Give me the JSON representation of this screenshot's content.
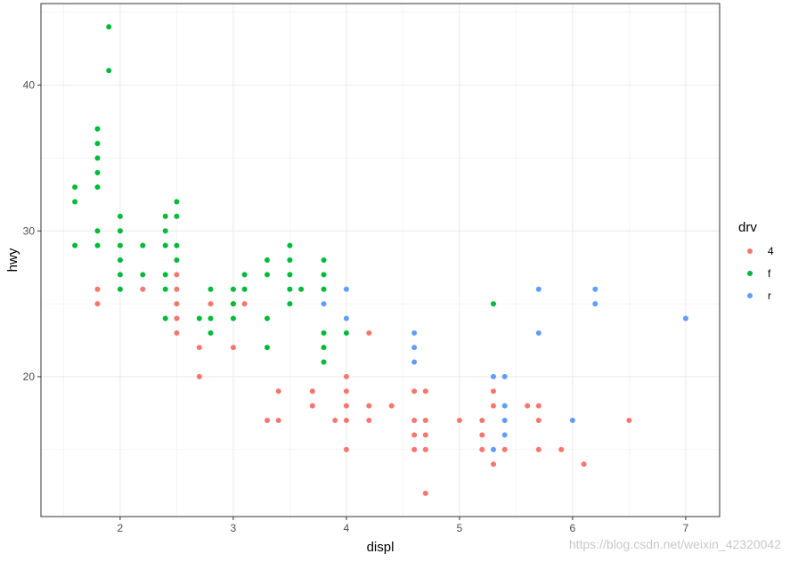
{
  "chart_data": {
    "type": "scatter",
    "title": "",
    "xlabel": "displ",
    "ylabel": "hwy",
    "xlim": [
      1.3,
      7.3
    ],
    "ylim": [
      10.4,
      45.6
    ],
    "x_ticks": [
      2,
      3,
      4,
      5,
      6,
      7
    ],
    "y_ticks": [
      20,
      30,
      40
    ],
    "grid": true,
    "legend": {
      "title": "drv",
      "placement": "right",
      "entries": [
        "4",
        "f",
        "r"
      ]
    },
    "colors": {
      "4": "#F8766D",
      "f": "#00BA38",
      "r": "#619CFF"
    },
    "series": [
      {
        "name": "4",
        "points": [
          [
            1.8,
            26
          ],
          [
            1.8,
            25
          ],
          [
            2.2,
            26
          ],
          [
            2.5,
            27
          ],
          [
            2.5,
            26
          ],
          [
            2.5,
            25
          ],
          [
            2.5,
            24
          ],
          [
            2.5,
            23
          ],
          [
            2.7,
            22
          ],
          [
            2.7,
            20
          ],
          [
            2.8,
            25
          ],
          [
            3.0,
            22
          ],
          [
            3.0,
            25
          ],
          [
            3.1,
            25
          ],
          [
            3.3,
            17
          ],
          [
            3.4,
            19
          ],
          [
            3.4,
            17
          ],
          [
            3.7,
            19
          ],
          [
            3.7,
            18
          ],
          [
            3.9,
            17
          ],
          [
            4.0,
            20
          ],
          [
            4.0,
            19
          ],
          [
            4.0,
            18
          ],
          [
            4.0,
            17
          ],
          [
            4.0,
            15
          ],
          [
            4.2,
            23
          ],
          [
            4.2,
            18
          ],
          [
            4.2,
            17
          ],
          [
            4.4,
            18
          ],
          [
            4.6,
            19
          ],
          [
            4.6,
            17
          ],
          [
            4.6,
            16
          ],
          [
            4.6,
            15
          ],
          [
            4.7,
            19
          ],
          [
            4.7,
            17
          ],
          [
            4.7,
            16
          ],
          [
            4.7,
            15
          ],
          [
            4.7,
            12
          ],
          [
            5.0,
            17
          ],
          [
            5.2,
            17
          ],
          [
            5.2,
            16
          ],
          [
            5.2,
            15
          ],
          [
            5.3,
            19
          ],
          [
            5.3,
            18
          ],
          [
            5.3,
            14
          ],
          [
            5.4,
            15
          ],
          [
            5.6,
            18
          ],
          [
            5.7,
            18
          ],
          [
            5.7,
            17
          ],
          [
            5.7,
            15
          ],
          [
            5.9,
            15
          ],
          [
            6.1,
            14
          ],
          [
            6.5,
            17
          ]
        ]
      },
      {
        "name": "f",
        "points": [
          [
            1.6,
            33
          ],
          [
            1.6,
            32
          ],
          [
            1.6,
            29
          ],
          [
            1.8,
            37
          ],
          [
            1.8,
            36
          ],
          [
            1.8,
            35
          ],
          [
            1.8,
            34
          ],
          [
            1.8,
            33
          ],
          [
            1.8,
            30
          ],
          [
            1.8,
            29
          ],
          [
            1.9,
            44
          ],
          [
            1.9,
            41
          ],
          [
            2.0,
            31
          ],
          [
            2.0,
            30
          ],
          [
            2.0,
            29
          ],
          [
            2.0,
            28
          ],
          [
            2.0,
            27
          ],
          [
            2.0,
            26
          ],
          [
            2.2,
            29
          ],
          [
            2.2,
            27
          ],
          [
            2.4,
            31
          ],
          [
            2.4,
            30
          ],
          [
            2.4,
            29
          ],
          [
            2.4,
            27
          ],
          [
            2.4,
            26
          ],
          [
            2.4,
            24
          ],
          [
            2.5,
            32
          ],
          [
            2.5,
            31
          ],
          [
            2.5,
            29
          ],
          [
            2.5,
            28
          ],
          [
            2.7,
            24
          ],
          [
            2.8,
            26
          ],
          [
            2.8,
            24
          ],
          [
            2.8,
            23
          ],
          [
            3.0,
            26
          ],
          [
            3.0,
            25
          ],
          [
            3.0,
            24
          ],
          [
            3.1,
            27
          ],
          [
            3.1,
            26
          ],
          [
            3.3,
            28
          ],
          [
            3.3,
            27
          ],
          [
            3.3,
            24
          ],
          [
            3.3,
            22
          ],
          [
            3.5,
            29
          ],
          [
            3.5,
            28
          ],
          [
            3.5,
            27
          ],
          [
            3.5,
            26
          ],
          [
            3.5,
            25
          ],
          [
            3.6,
            26
          ],
          [
            3.8,
            28
          ],
          [
            3.8,
            27
          ],
          [
            3.8,
            26
          ],
          [
            3.8,
            23
          ],
          [
            3.8,
            22
          ],
          [
            3.8,
            21
          ],
          [
            4.0,
            23
          ],
          [
            5.3,
            25
          ]
        ]
      },
      {
        "name": "r",
        "points": [
          [
            3.8,
            25
          ],
          [
            4.0,
            26
          ],
          [
            4.0,
            24
          ],
          [
            4.6,
            23
          ],
          [
            4.6,
            22
          ],
          [
            4.6,
            21
          ],
          [
            5.3,
            20
          ],
          [
            5.3,
            15
          ],
          [
            5.4,
            20
          ],
          [
            5.4,
            18
          ],
          [
            5.4,
            17
          ],
          [
            5.4,
            16
          ],
          [
            5.7,
            26
          ],
          [
            5.7,
            23
          ],
          [
            6.0,
            17
          ],
          [
            6.2,
            26
          ],
          [
            6.2,
            25
          ],
          [
            7.0,
            24
          ]
        ]
      }
    ]
  },
  "watermark": "https://blog.csdn.net/weixin_42320042"
}
